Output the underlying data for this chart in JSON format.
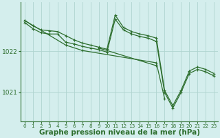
{
  "background_color": "#d4eeed",
  "grid_color": "#b0d4d0",
  "line_color": "#2d6e2d",
  "xlabel": "Graphe pression niveau de la mer (hPa)",
  "xlabel_fontsize": 7.5,
  "yticks": [
    1021,
    1022
  ],
  "xlim": [
    -0.5,
    23.5
  ],
  "ylim": [
    1020.3,
    1023.2
  ],
  "series1_x": [
    0,
    1,
    2,
    3,
    4,
    5,
    6,
    7,
    8,
    9,
    10,
    11,
    12,
    13,
    14,
    15,
    16,
    17,
    18,
    19,
    20,
    21,
    22,
    23
  ],
  "series1_y": [
    1022.75,
    1022.62,
    1022.52,
    1022.5,
    1022.48,
    1022.38,
    1022.28,
    1022.2,
    1022.15,
    1022.1,
    1022.05,
    1022.88,
    1022.58,
    1022.48,
    1022.42,
    1022.38,
    1022.32,
    1021.05,
    1020.68,
    1021.05,
    1021.52,
    1021.62,
    1021.56,
    1021.46
  ],
  "series2_x": [
    0,
    1,
    2,
    3,
    4,
    5,
    6,
    7,
    8,
    9,
    10,
    11,
    12,
    13,
    14,
    15,
    16,
    17,
    18,
    19,
    20,
    21,
    22,
    23
  ],
  "series2_y": [
    1022.7,
    1022.55,
    1022.45,
    1022.42,
    1022.42,
    1022.22,
    1022.18,
    1022.12,
    1022.08,
    1022.04,
    1021.98,
    1022.78,
    1022.52,
    1022.42,
    1022.36,
    1022.32,
    1022.24,
    1021.0,
    1020.62,
    1021.0,
    1021.46,
    1021.56,
    1021.5,
    1021.4
  ],
  "series3_x": [
    0,
    5,
    7,
    16,
    17
  ],
  "series3_y": [
    1022.75,
    1022.15,
    1022.02,
    1021.72,
    1020.85
  ],
  "series4_x": [
    9,
    16
  ],
  "series4_y": [
    1022.08,
    1021.65
  ],
  "xtick_labels": [
    "0",
    "1",
    "2",
    "3",
    "4",
    "5",
    "6",
    "7",
    "8",
    "9",
    "10",
    "11",
    "12",
    "13",
    "14",
    "15",
    "16",
    "17",
    "18",
    "19",
    "20",
    "21",
    "22",
    "23"
  ]
}
